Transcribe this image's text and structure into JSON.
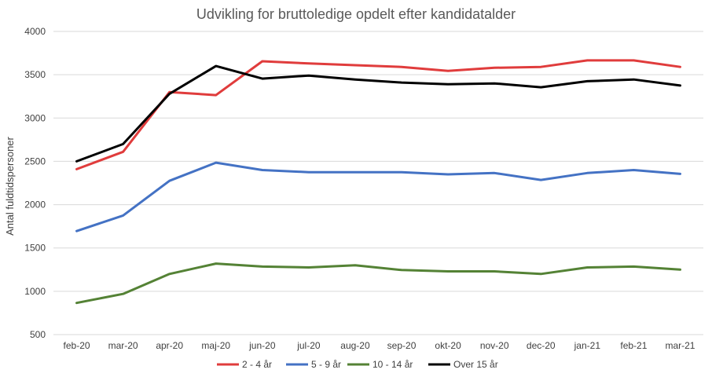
{
  "chart_data": {
    "type": "line",
    "title": "Udvikling for bruttoledige opdelt efter kandidatalder",
    "ylabel": "Antal fuldtidspersoner",
    "xlabel": "",
    "ylim": [
      500,
      4000
    ],
    "yticks": [
      500,
      1000,
      1500,
      2000,
      2500,
      3000,
      3500,
      4000
    ],
    "grid": true,
    "legend_position": "bottom",
    "categories": [
      "feb-20",
      "mar-20",
      "apr-20",
      "maj-20",
      "jun-20",
      "jul-20",
      "aug-20",
      "sep-20",
      "okt-20",
      "nov-20",
      "dec-20",
      "jan-21",
      "feb-21",
      "mar-21"
    ],
    "series": [
      {
        "name": "2 - 4 år",
        "color": "#e03c3c",
        "values": [
          2410,
          2610,
          3300,
          3265,
          3655,
          3630,
          3610,
          3590,
          3545,
          3580,
          3590,
          3665,
          3665,
          3590
        ]
      },
      {
        "name": "5 - 9 år",
        "color": "#4472c4",
        "values": [
          1695,
          1875,
          2275,
          2485,
          2400,
          2375,
          2375,
          2375,
          2350,
          2365,
          2285,
          2365,
          2400,
          2355
        ]
      },
      {
        "name": "10 - 14 år",
        "color": "#548235",
        "values": [
          865,
          970,
          1200,
          1320,
          1285,
          1275,
          1300,
          1245,
          1230,
          1230,
          1200,
          1275,
          1285,
          1250
        ]
      },
      {
        "name": "Over 15 år",
        "color": "#000000",
        "values": [
          2500,
          2700,
          3280,
          3600,
          3455,
          3490,
          3445,
          3410,
          3390,
          3400,
          3355,
          3425,
          3445,
          3375
        ]
      }
    ]
  }
}
